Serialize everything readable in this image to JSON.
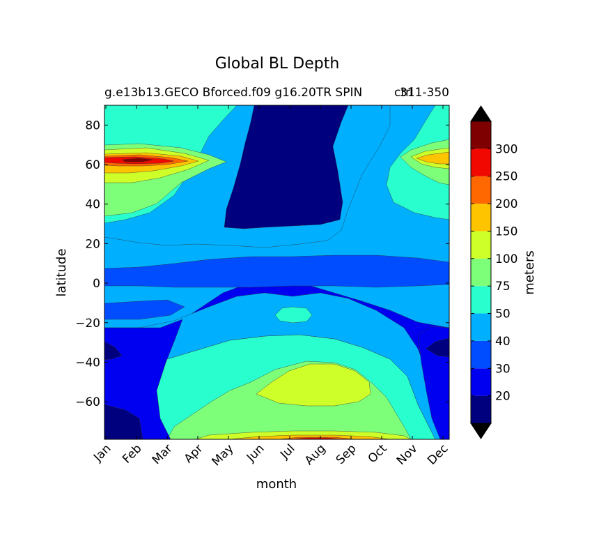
{
  "chart_data": {
    "type": "heatmap",
    "title": "Global BL Depth",
    "subtitle_left": "g.e13b13.GECO Bforced.f09 g16.20TR SPIN",
    "subtitle_right": "311-350",
    "subtitle_overlap": "ctrl",
    "xlabel": "month",
    "ylabel": "latitude",
    "x_categories": [
      "Jan",
      "Feb",
      "Mar",
      "Apr",
      "May",
      "Jun",
      "Jul",
      "Aug",
      "Sep",
      "Oct",
      "Nov",
      "Dec"
    ],
    "y_ticks": [
      80,
      60,
      40,
      20,
      0,
      -20,
      -40,
      -60
    ],
    "ylim": [
      -79,
      90
    ],
    "colorbar": {
      "label": "meters",
      "levels": [
        10,
        20,
        30,
        40,
        50,
        75,
        100,
        150,
        200,
        250,
        300,
        350
      ],
      "tick_labels": [
        "20",
        "30",
        "40",
        "50",
        "75",
        "100",
        "150",
        "200",
        "250",
        "300"
      ],
      "colors": [
        "#00007f",
        "#0000f0",
        "#004cff",
        "#00b0ff",
        "#29ffce",
        "#7dff7a",
        "#ceff29",
        "#ffc400",
        "#ff6800",
        "#f10800",
        "#7f0000"
      ],
      "extend": "both",
      "extend_min_color": "#000000",
      "extend_max_color": "#000000"
    },
    "approx_features": [
      {
        "region": "Jun-Oct, 25N to 90N",
        "value_range": "10-20"
      },
      {
        "region": "Jan-Feb, near 62N",
        "value_range": "250-350"
      },
      {
        "region": "Jul-Sep, 40S to 60S",
        "value_range": "100-150"
      },
      {
        "region": "Jul, near 15S",
        "value_range": "50-75"
      },
      {
        "region": "Jul-Sep, near 78S",
        "value_range": "150-250"
      }
    ]
  }
}
